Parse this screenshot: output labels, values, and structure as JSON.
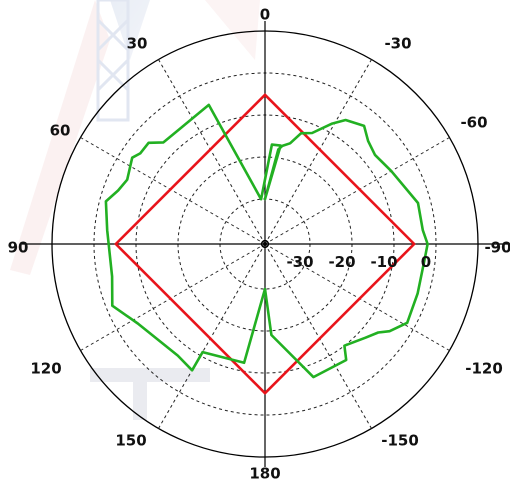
{
  "chart_data": {
    "type": "polar-line",
    "angle_tick_labels": [
      "0",
      "-30",
      "-60",
      "-90",
      "-120",
      "-150",
      "180",
      "150",
      "120",
      "90",
      "60",
      "30"
    ],
    "radial_tick_labels": [
      "-30",
      "-20",
      "-10",
      "0"
    ],
    "rlim": [
      -30,
      0
    ],
    "grid": true,
    "series": [
      {
        "color": "#e8141b",
        "points": [
          [
            0,
            -5.2
          ],
          [
            90,
            -5.2
          ],
          [
            180,
            -5.2
          ],
          [
            270,
            -5.2
          ],
          [
            360,
            -5.2
          ]
        ]
      },
      {
        "color": "#22b022",
        "points": [
          [
            0,
            -30
          ],
          [
            -8,
            -18
          ],
          [
            -10,
            -17
          ],
          [
            -14,
            -16
          ],
          [
            -18,
            -13
          ],
          [
            -23,
            -12
          ],
          [
            -29,
            -8
          ],
          [
            -33,
            -5.5
          ],
          [
            -40,
            -4
          ],
          [
            -45,
            -6
          ],
          [
            -51,
            -7
          ],
          [
            -60,
            -6
          ],
          [
            -75,
            -3
          ],
          [
            -85,
            -3
          ],
          [
            -90,
            -2
          ],
          [
            -95,
            -2.5
          ],
          [
            -108,
            -2.5
          ],
          [
            -119,
            -2
          ],
          [
            -125,
            -4.5
          ],
          [
            -128,
            -6.5
          ],
          [
            -133,
            -8
          ],
          [
            -142,
            -10
          ],
          [
            -145,
            -7
          ],
          [
            -160,
            -7
          ],
          [
            -176,
            -19
          ],
          [
            180,
            -30
          ],
          [
            170,
            -12
          ],
          [
            150,
            -11
          ],
          [
            150,
            -6
          ],
          [
            142,
            -7
          ],
          [
            122,
            -5
          ],
          [
            112,
            -1.5
          ],
          [
            102,
            -3.5
          ],
          [
            85,
            -3
          ],
          [
            75,
            -1.5
          ],
          [
            70,
            -3.5
          ],
          [
            65,
            -4.5
          ],
          [
            57,
            -3
          ],
          [
            54,
            -4
          ],
          [
            49,
            -4
          ],
          [
            45,
            -6.5
          ],
          [
            34,
            -6.5
          ],
          [
            22,
            -5
          ],
          [
            5,
            -30
          ],
          [
            -4,
            -17
          ],
          [
            -9,
            -17
          ],
          [
            0,
            -30
          ]
        ]
      }
    ]
  }
}
